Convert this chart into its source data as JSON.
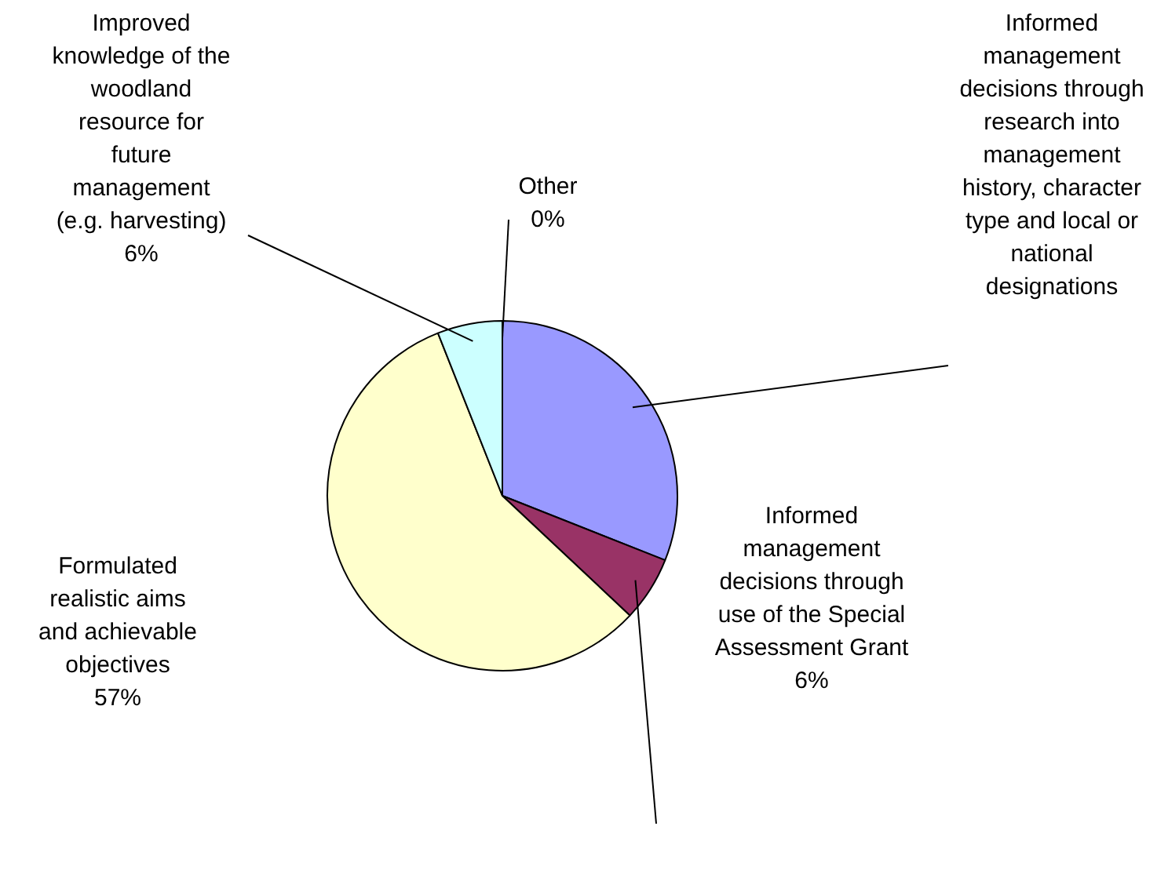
{
  "chart_data": {
    "type": "pie",
    "categories": [
      "Informed management decisions through research into management history, character type and local or national designations",
      "Informed management decisions through use of the Special Assessment Grant",
      "Formulated realistic aims and achievable objectives",
      "Improved knowledge of the woodland resource for future management (e.g. harvesting)",
      "Other"
    ],
    "values": [
      31,
      6,
      57,
      6,
      0
    ],
    "value_labels": [
      null,
      "6%",
      "57%",
      "6%",
      "0%"
    ],
    "colors": [
      "#9999ff",
      "#993366",
      "#ffffcc",
      "#ccffff",
      "#660066"
    ],
    "legend": false
  }
}
